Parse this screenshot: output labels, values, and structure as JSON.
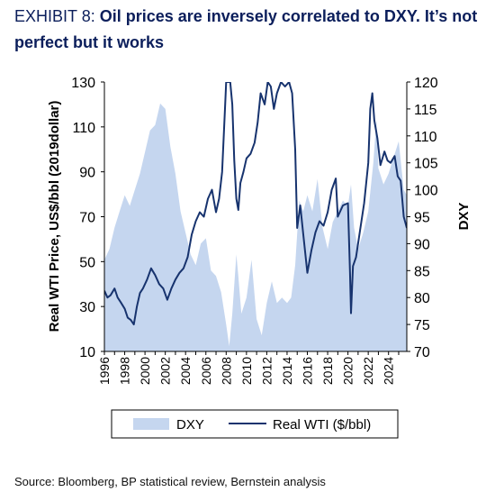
{
  "title": {
    "exhibit": "EXHIBIT 8:",
    "headline": "Oil prices are inversely correlated to DXY. It’s not perfect but it works"
  },
  "source": "Source: Bloomberg, BP statistical review, Bernstein analysis",
  "chart_data": {
    "type": "area+line",
    "ylabel_left": "Real WTI Price, US$/bbl (2019dollar)",
    "ylabel_right": "DXY",
    "ylim_left": [
      10,
      130
    ],
    "ylim_right": [
      70,
      120
    ],
    "yticks_left": [
      10,
      30,
      50,
      70,
      90,
      110,
      130
    ],
    "yticks_right": [
      70,
      75,
      80,
      85,
      90,
      95,
      100,
      105,
      110,
      115,
      120
    ],
    "xlim": [
      1996,
      2025.8
    ],
    "xticks": [
      "1996",
      "1998",
      "2000",
      "2002",
      "2004",
      "2006",
      "2008",
      "2010",
      "2012",
      "2014",
      "2016",
      "2018",
      "2020",
      "2022",
      "2024"
    ],
    "legend_position": "bottom",
    "colors": {
      "dxy_fill": "#c5d6ef",
      "wti_line": "#17336e",
      "axis": "#000000"
    },
    "series": [
      {
        "name": "DXY",
        "axis": "right",
        "style": "area",
        "x": [
          1996.0,
          1996.5,
          1997.0,
          1997.5,
          1998.0,
          1998.5,
          1999.0,
          1999.5,
          2000.0,
          2000.5,
          2001.0,
          2001.5,
          2002.0,
          2002.5,
          2003.0,
          2003.5,
          2004.0,
          2004.5,
          2005.0,
          2005.5,
          2006.0,
          2006.5,
          2007.0,
          2007.5,
          2008.0,
          2008.3,
          2008.6,
          2009.0,
          2009.2,
          2009.5,
          2010.0,
          2010.5,
          2011.0,
          2011.5,
          2012.0,
          2012.5,
          2013.0,
          2013.5,
          2014.0,
          2014.4,
          2014.8,
          2015.2,
          2015.6,
          2016.0,
          2016.5,
          2017.0,
          2017.5,
          2018.0,
          2018.5,
          2019.0,
          2019.5,
          2020.0,
          2020.3,
          2020.6,
          2021.0,
          2021.5,
          2022.0,
          2022.5,
          2022.8,
          2023.0,
          2023.5,
          2024.0,
          2024.5,
          2025.0,
          2025.5,
          2025.8
        ],
        "y": [
          87,
          89,
          93,
          96,
          99,
          97,
          100,
          103,
          107,
          111,
          112,
          116,
          115,
          108,
          103,
          96,
          92,
          88,
          86,
          90,
          91,
          85,
          84,
          81,
          75,
          71,
          77,
          88,
          84,
          77,
          80,
          87,
          76,
          73,
          79,
          83,
          79,
          80,
          79,
          80,
          86,
          98,
          96,
          99,
          96,
          102,
          93,
          89,
          94,
          96,
          98,
          97,
          101,
          93,
          89,
          92,
          96,
          105,
          113,
          104,
          101,
          103,
          106,
          109,
          100,
          99
        ]
      },
      {
        "name": "Real WTI ($/bbl)",
        "axis": "left",
        "style": "line",
        "x": [
          1996.0,
          1996.3,
          1996.6,
          1997.0,
          1997.3,
          1997.6,
          1998.0,
          1998.3,
          1998.6,
          1998.9,
          1999.2,
          1999.5,
          1999.8,
          2000.2,
          2000.6,
          2001.0,
          2001.4,
          2001.8,
          2002.2,
          2002.6,
          2003.0,
          2003.4,
          2003.8,
          2004.2,
          2004.6,
          2005.0,
          2005.4,
          2005.8,
          2006.2,
          2006.6,
          2007.0,
          2007.3,
          2007.6,
          2007.9,
          2008.0,
          2008.2,
          2008.4,
          2008.6,
          2008.8,
          2009.0,
          2009.2,
          2009.4,
          2009.7,
          2010.0,
          2010.4,
          2010.8,
          2011.1,
          2011.4,
          2011.8,
          2012.1,
          2012.4,
          2012.7,
          2013.0,
          2013.4,
          2013.8,
          2014.2,
          2014.5,
          2014.8,
          2015.0,
          2015.3,
          2015.6,
          2016.0,
          2016.4,
          2016.8,
          2017.2,
          2017.6,
          2018.0,
          2018.4,
          2018.8,
          2019.0,
          2019.5,
          2020.0,
          2020.2,
          2020.3,
          2020.5,
          2020.8,
          2021.2,
          2021.6,
          2022.0,
          2022.2,
          2022.4,
          2022.6,
          2022.9,
          2023.2,
          2023.6,
          2023.9,
          2024.2,
          2024.6,
          2024.9,
          2025.2,
          2025.5,
          2025.8
        ],
        "y": [
          37,
          34,
          35,
          38,
          34,
          32,
          29,
          25,
          24,
          22,
          30,
          36,
          38,
          42,
          47,
          44,
          40,
          38,
          33,
          38,
          42,
          45,
          47,
          52,
          62,
          68,
          72,
          70,
          78,
          82,
          72,
          78,
          90,
          120,
          130,
          130,
          130,
          120,
          95,
          78,
          73,
          85,
          90,
          96,
          98,
          103,
          112,
          125,
          120,
          130,
          128,
          118,
          125,
          130,
          128,
          130,
          125,
          100,
          65,
          75,
          62,
          45,
          55,
          63,
          68,
          66,
          72,
          82,
          87,
          70,
          75,
          76,
          45,
          27,
          48,
          52,
          64,
          76,
          94,
          118,
          125,
          113,
          105,
          93,
          99,
          95,
          94,
          97,
          88,
          86,
          70,
          65
        ]
      }
    ]
  }
}
